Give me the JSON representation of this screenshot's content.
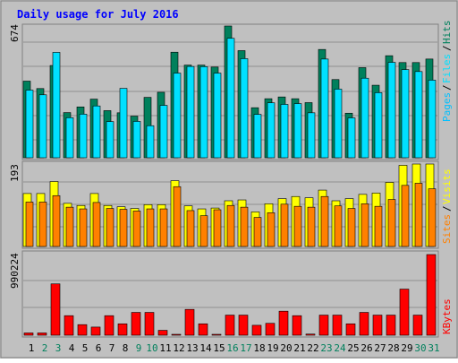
{
  "title": "Daily usage for July 2016",
  "colors": {
    "background": "#C0C0C0",
    "title": "#0000FF",
    "hits": "#00805C",
    "files": "#00E0FF",
    "pages": "#00C0FF",
    "sites": "#FF8000",
    "visits": "#FFFF00",
    "kbytes": "#FF0000",
    "weekend_day": "#00805C",
    "weekday": "#000000"
  },
  "panels": {
    "top": {
      "max_label": "674",
      "legend": [
        "Pages",
        "Files",
        "Hits"
      ]
    },
    "middle": {
      "max_label": "193",
      "legend": [
        "Sites",
        "Visits"
      ]
    },
    "bottom": {
      "max_label": "990224",
      "legend": [
        "KBytes"
      ]
    }
  },
  "chart_data": {
    "type": "bar",
    "title": "Daily usage for July 2016",
    "categories": [
      "1",
      "2",
      "3",
      "4",
      "5",
      "6",
      "7",
      "8",
      "9",
      "10",
      "11",
      "12",
      "13",
      "14",
      "15",
      "16",
      "17",
      "18",
      "19",
      "20",
      "21",
      "22",
      "23",
      "24",
      "25",
      "26",
      "27",
      "28",
      "29",
      "30",
      "31"
    ],
    "weekend_days": [
      "2",
      "3",
      "9",
      "10",
      "16",
      "17",
      "23",
      "24",
      "30",
      "31"
    ],
    "panels": [
      {
        "name": "top",
        "ylim": [
          0,
          674
        ],
        "series": [
          {
            "name": "Hits",
            "values": [
              392,
              354,
              472,
              231,
              260,
              300,
              241,
              230,
              213,
              309,
              335,
              540,
              474,
              474,
              464,
              674,
              548,
              256,
              302,
              311,
              302,
              282,
              554,
              400,
              228,
              461,
              371,
              522,
              487,
              487,
              505
            ]
          },
          {
            "name": "Files",
            "values": [
              346,
              322,
              539,
              205,
              223,
              265,
              185,
              355,
              186,
              164,
              268,
              433,
              467,
              466,
              433,
              611,
              507,
              222,
              281,
              273,
              277,
              230,
              505,
              351,
              204,
              407,
              333,
              488,
              451,
              441,
              397
            ]
          },
          {
            "name": "Pages",
            "values": [
              0,
              0,
              0,
              0,
              0,
              0,
              0,
              0,
              0,
              0,
              0,
              0,
              0,
              0,
              0,
              0,
              0,
              0,
              0,
              0,
              0,
              0,
              0,
              0,
              0,
              0,
              0,
              0,
              0,
              0,
              0
            ]
          }
        ]
      },
      {
        "name": "middle",
        "ylim": [
          0,
          193
        ],
        "series": [
          {
            "name": "Visits",
            "values": [
              124,
              124,
              152,
              101,
              96,
              124,
              96,
              93,
              89,
              98,
              98,
              154,
              95,
              88,
              90,
              107,
              109,
              81,
              100,
              112,
              117,
              114,
              132,
              107,
              112,
              122,
              125,
              150,
              190,
              193,
              193
            ]
          },
          {
            "name": "Sites",
            "values": [
              104,
              104,
              119,
              92,
              88,
              103,
              89,
              87,
              83,
              88,
              88,
              140,
              84,
              72,
              86,
              96,
              92,
              68,
              79,
              99,
              94,
              92,
              117,
              95,
              89,
              100,
              94,
              110,
              143,
              148,
              135
            ]
          }
        ]
      },
      {
        "name": "bottom",
        "ylim": [
          0,
          990224
        ],
        "series": [
          {
            "name": "KBytes",
            "values": [
              28000,
              28000,
              630000,
              240000,
              130000,
              100000,
              240000,
              140000,
              280000,
              280000,
              60000,
              10000,
              317000,
              140000,
              10000,
              247000,
              247000,
              122000,
              146000,
              295000,
              240000,
              14000,
              247000,
              247000,
              140000,
              280000,
              247000,
              247000,
              566000,
              247000,
              990224
            ]
          }
        ]
      }
    ]
  }
}
